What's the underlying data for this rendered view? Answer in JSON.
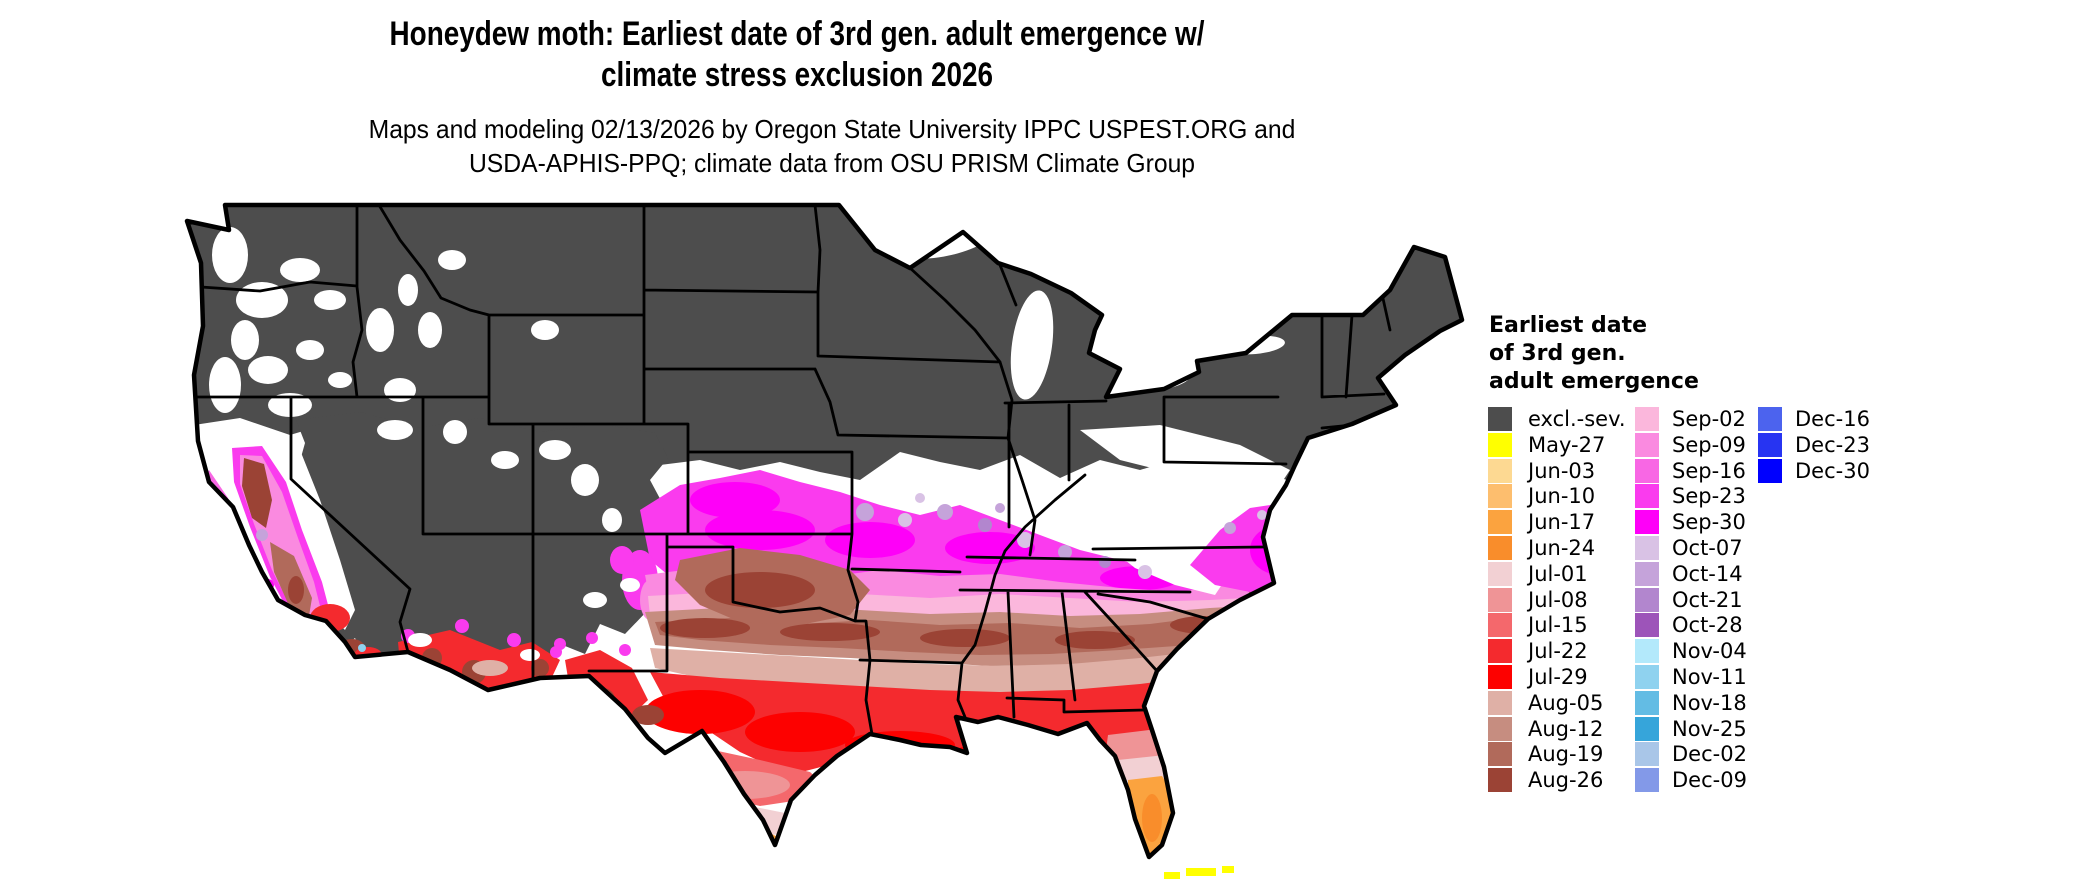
{
  "header": {
    "title_lines": [
      "Honeydew moth: Earliest date of 3rd gen. adult emergence w/",
      "climate stress exclusion 2026"
    ],
    "subtitle_lines": [
      "Maps and modeling 02/13/2026 by Oregon State University IPPC USPEST.ORG and",
      "USDA-APHIS-PPQ; climate data from OSU PRISM Climate Group"
    ]
  },
  "map": {
    "description": "Contiguous United States choropleth of earliest 3rd generation adult emergence date",
    "background": "#ffffff",
    "no_data_color": "#ffffff",
    "state_border_color": "#000000"
  },
  "legend": {
    "title_lines": [
      "Earliest date",
      "of 3rd gen.",
      "adult emergence"
    ],
    "columns": [
      [
        {
          "label": "excl.-sev.",
          "color": "#4d4d4d"
        },
        {
          "label": "May-27",
          "color": "#ffff00"
        },
        {
          "label": "Jun-03",
          "color": "#fdd992"
        },
        {
          "label": "Jun-10",
          "color": "#fdbe6e"
        },
        {
          "label": "Jun-17",
          "color": "#fba33f"
        },
        {
          "label": "Jun-24",
          "color": "#f98d2b"
        },
        {
          "label": "Jul-01",
          "color": "#f2d0d3"
        },
        {
          "label": "Jul-08",
          "color": "#ef9496"
        },
        {
          "label": "Jul-15",
          "color": "#f4686c"
        },
        {
          "label": "Jul-22",
          "color": "#f42a2e"
        },
        {
          "label": "Jul-29",
          "color": "#fd0100"
        },
        {
          "label": "Aug-05",
          "color": "#dfb0a6"
        },
        {
          "label": "Aug-12",
          "color": "#c68d80"
        },
        {
          "label": "Aug-19",
          "color": "#b16a5b"
        },
        {
          "label": "Aug-26",
          "color": "#9b4335"
        }
      ],
      [
        {
          "label": "Sep-02",
          "color": "#fbb7dc"
        },
        {
          "label": "Sep-09",
          "color": "#fa8ae0"
        },
        {
          "label": "Sep-16",
          "color": "#f867e4"
        },
        {
          "label": "Sep-23",
          "color": "#fa3bee"
        },
        {
          "label": "Sep-30",
          "color": "#fe00f8"
        },
        {
          "label": "Oct-07",
          "color": "#d9c2e5"
        },
        {
          "label": "Oct-14",
          "color": "#c5a3da"
        },
        {
          "label": "Oct-21",
          "color": "#b286ce"
        },
        {
          "label": "Oct-28",
          "color": "#9d54b9"
        },
        {
          "label": "Nov-04",
          "color": "#b3e9fb"
        },
        {
          "label": "Nov-11",
          "color": "#8fd2ef"
        },
        {
          "label": "Nov-18",
          "color": "#63bce4"
        },
        {
          "label": "Nov-25",
          "color": "#36a5da"
        },
        {
          "label": "Dec-02",
          "color": "#a9c6e8"
        },
        {
          "label": "Dec-09",
          "color": "#8399e8"
        }
      ],
      [
        {
          "label": "Dec-16",
          "color": "#4c63ee"
        },
        {
          "label": "Dec-23",
          "color": "#2734f2"
        },
        {
          "label": "Dec-30",
          "color": "#0000fe"
        }
      ]
    ]
  }
}
